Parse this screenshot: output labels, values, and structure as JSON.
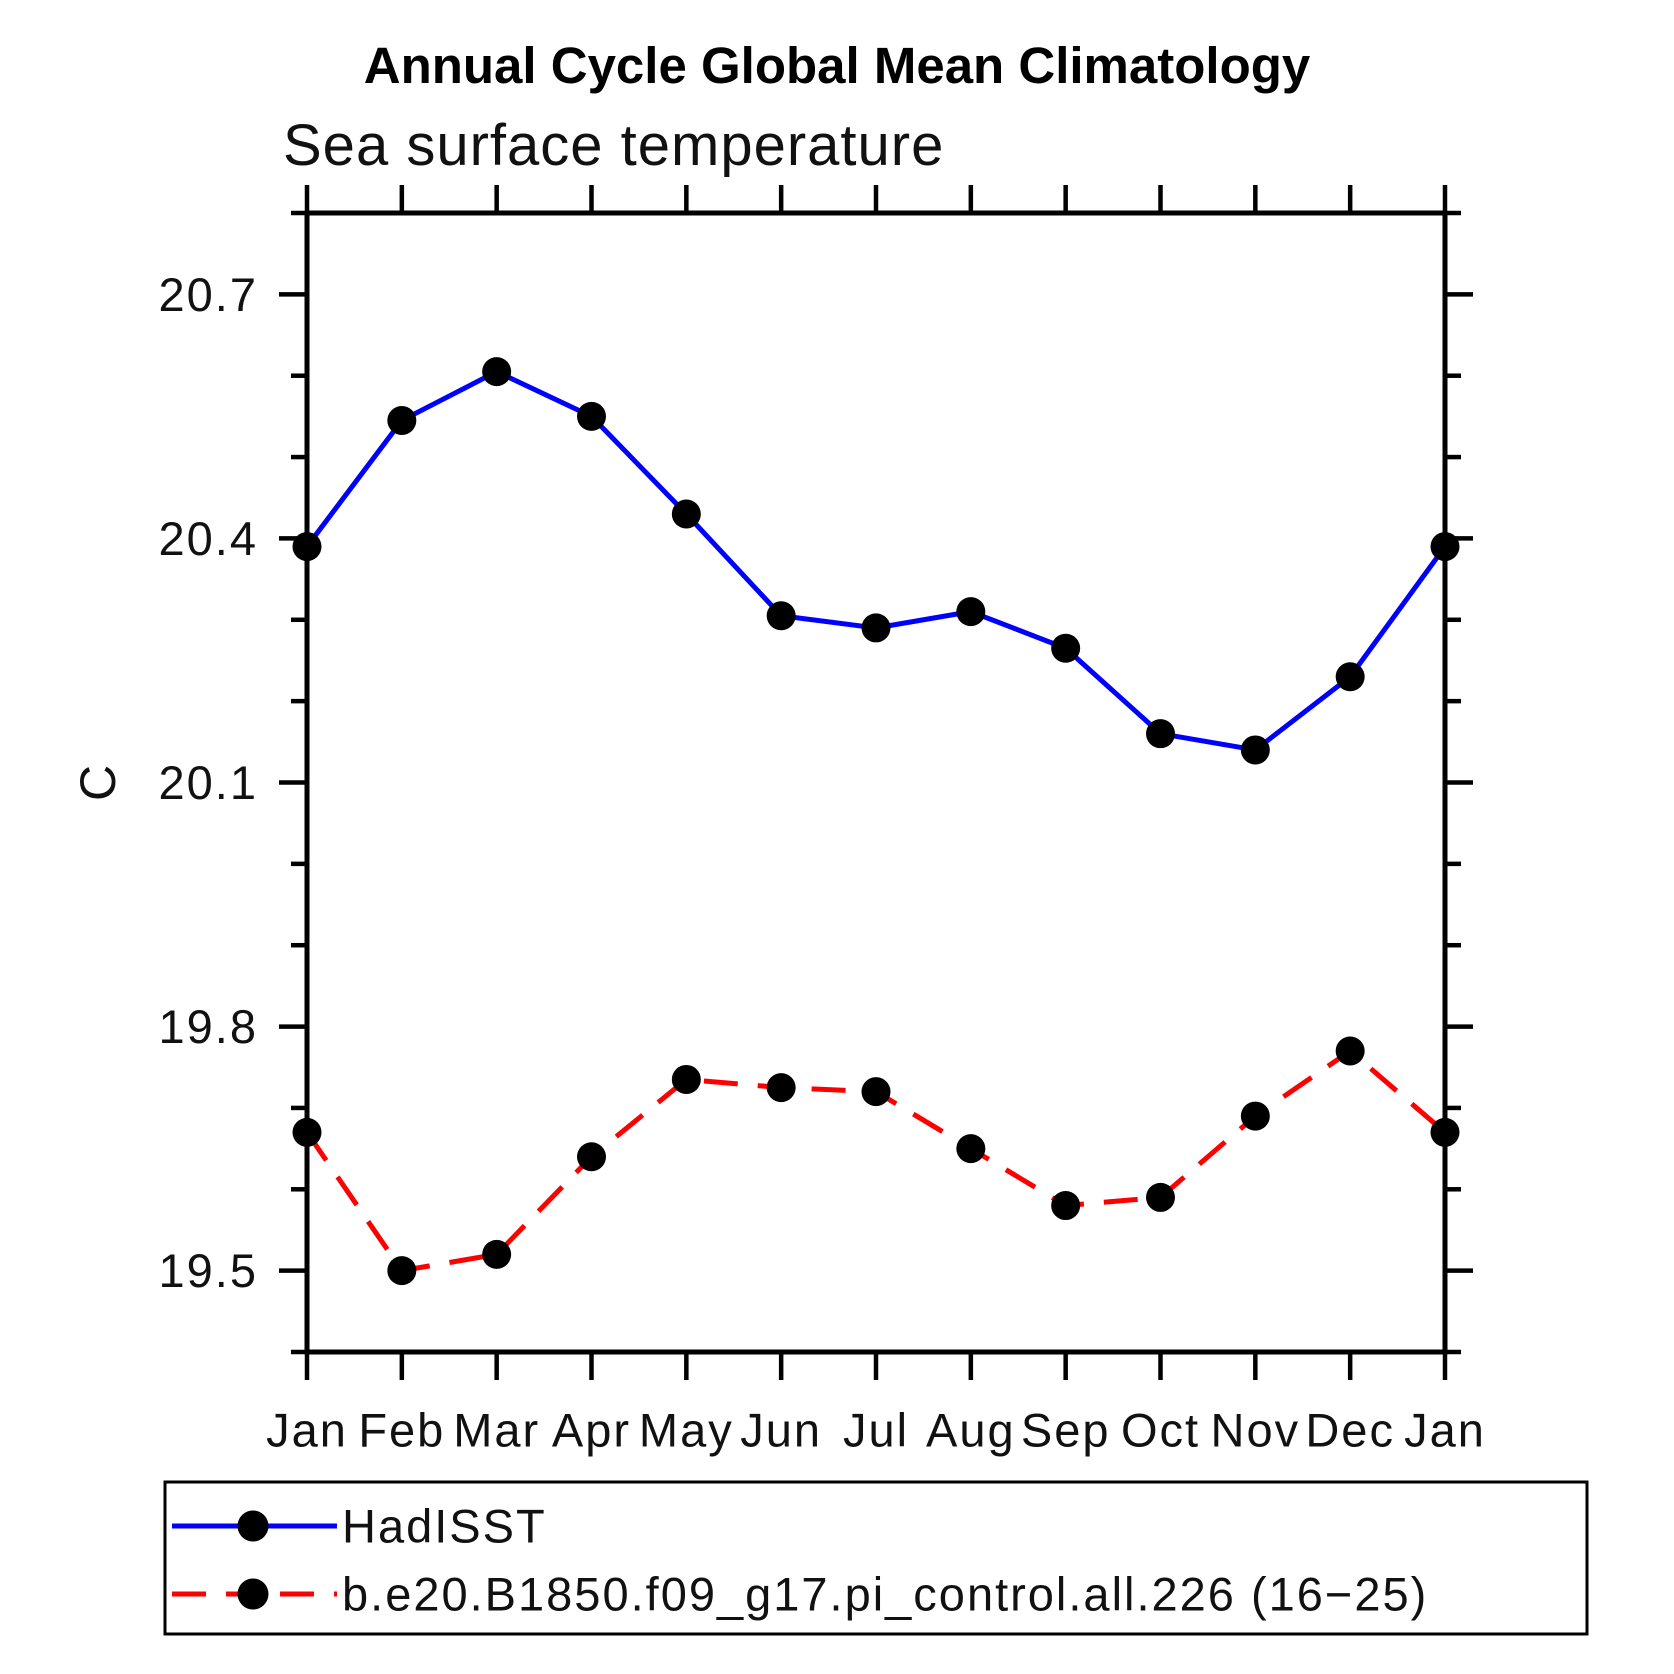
{
  "title": "Annual Cycle Global Mean Climatology",
  "subtitle": "Sea surface temperature",
  "chart_data": {
    "type": "line",
    "title": "Annual Cycle Global Mean Climatology",
    "subtitle": "Sea surface temperature",
    "xlabel": "",
    "ylabel": "C",
    "categories": [
      "Jan",
      "Feb",
      "Mar",
      "Apr",
      "May",
      "Jun",
      "Jul",
      "Aug",
      "Sep",
      "Oct",
      "Nov",
      "Dec",
      "Jan"
    ],
    "ylim": [
      19.4,
      20.8
    ],
    "yticks_major": [
      19.5,
      19.8,
      20.1,
      20.4,
      20.7
    ],
    "ytick_labels": [
      "19.5",
      "19.8",
      "20.1",
      "20.4",
      "20.7"
    ],
    "ytick_minor_step": 0.1,
    "grid": false,
    "legend_position": "bottom",
    "colors": {
      "axis": "#000000",
      "hadisst_line": "#0000ff",
      "model_line": "#ff0000",
      "marker": "#000000"
    },
    "series": [
      {
        "name": "HadISST",
        "color": "#0000ff",
        "line_style": "solid",
        "marker": "filled-circle",
        "marker_color": "#000000",
        "values": [
          20.39,
          20.545,
          20.605,
          20.55,
          20.43,
          20.305,
          20.29,
          20.31,
          20.265,
          20.16,
          20.14,
          20.23,
          20.39
        ]
      },
      {
        "name": "b.e20.B1850.f09_g17.pi_control.all.226 (16−25)",
        "color": "#ff0000",
        "line_style": "dashed",
        "marker": "filled-circle",
        "marker_color": "#000000",
        "values": [
          19.67,
          19.5,
          19.52,
          19.64,
          19.735,
          19.725,
          19.72,
          19.65,
          19.58,
          19.59,
          19.69,
          19.77,
          19.67
        ]
      }
    ]
  }
}
